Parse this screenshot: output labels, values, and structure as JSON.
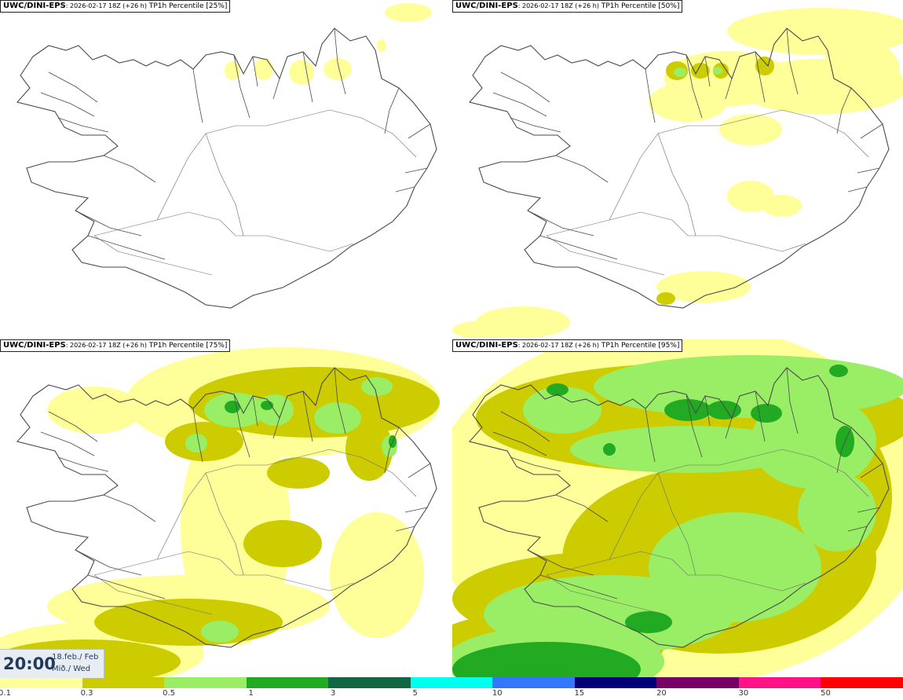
{
  "panels": [
    {
      "id": "tl",
      "model": "UWC/DINI-EPS",
      "run": ": 2026-02-17 18Z (+26 h)",
      "title": "TP1h Percentile [25%]",
      "level": 1
    },
    {
      "id": "tr",
      "model": "UWC/DINI-EPS",
      "run": ": 2026-02-17 18Z (+26 h)",
      "title": "TP1h Percentile [50%]",
      "level": 2
    },
    {
      "id": "bl",
      "model": "UWC/DINI-EPS",
      "run": ": 2026-02-17 18Z (+26 h)",
      "title": "TP1h Percentile [75%]",
      "level": 3
    },
    {
      "id": "br",
      "model": "UWC/DINI-EPS",
      "run": ": 2026-02-17 18Z (+26 h)",
      "title": "TP1h Percentile [95%]",
      "level": 4
    }
  ],
  "valid_time": {
    "time": "20:00",
    "date_line1": "18.feb./ Feb",
    "date_line2": "Mið./ Wed"
  },
  "colorbar": {
    "colors": [
      "#ffff99",
      "#cccc00",
      "#99ee66",
      "#22aa22",
      "#116644",
      "#00ffee",
      "#3377ff",
      "#000077",
      "#770066",
      "#ff1188",
      "#ff0000"
    ],
    "ticks": [
      "0.1",
      "0.3",
      "0.5",
      "1",
      "3",
      "5",
      "10",
      "15",
      "20",
      "30",
      "50"
    ]
  },
  "map_colors": {
    "outline": "#4a4a4a",
    "light": "#ffff99",
    "olive": "#cccc00",
    "lightgreen": "#99ee66",
    "green": "#22aa22"
  }
}
